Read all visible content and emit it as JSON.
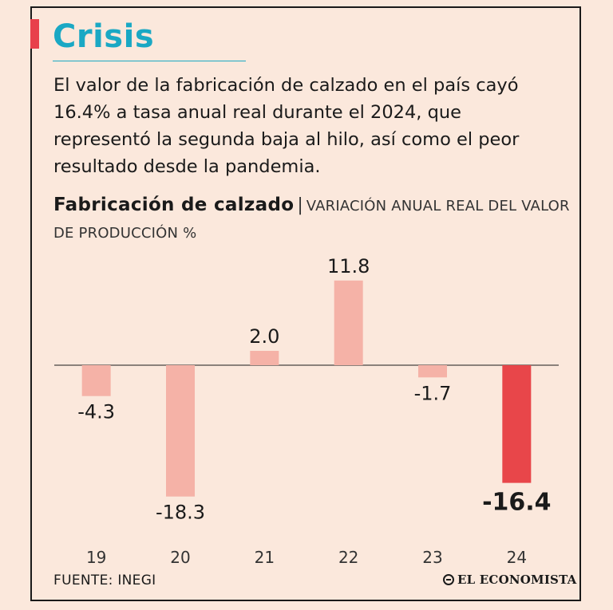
{
  "header": {
    "title": "Crisis",
    "intro": "El valor de la fabricación de calzado en el país cayó 16.4% a tasa anual real durante el 2024, que representó la segunda baja al hilo, así como el peor resultado desde la pandemia."
  },
  "chart_heading": {
    "bold": "Fabricación de calzado",
    "separator": "|",
    "upper": "VARIACIÓN ANUAL REAL DEL VALOR DE PRODUCCIÓN %"
  },
  "chart_data": {
    "type": "bar",
    "title": "Fabricación de calzado",
    "subtitle": "VARIACIÓN ANUAL REAL DEL VALOR DE PRODUCCIÓN %",
    "categories": [
      "19",
      "20",
      "21",
      "22",
      "23",
      "24"
    ],
    "values": [
      -4.3,
      -18.3,
      2.0,
      11.8,
      -1.7,
      -16.4
    ],
    "value_labels": [
      "-4.3",
      "-18.3",
      "2.0",
      "11.8",
      "-1.7",
      "-16.4"
    ],
    "highlight_index": 5,
    "colors": {
      "bar": "#f5b2a7",
      "highlight": "#e8464a"
    },
    "grid": false,
    "xlabel": "",
    "ylabel": ""
  },
  "footer": {
    "source": "FUENTE: INEGI",
    "brand": "EL ECONOMISTA",
    "brand_icon": "globe-icon"
  }
}
